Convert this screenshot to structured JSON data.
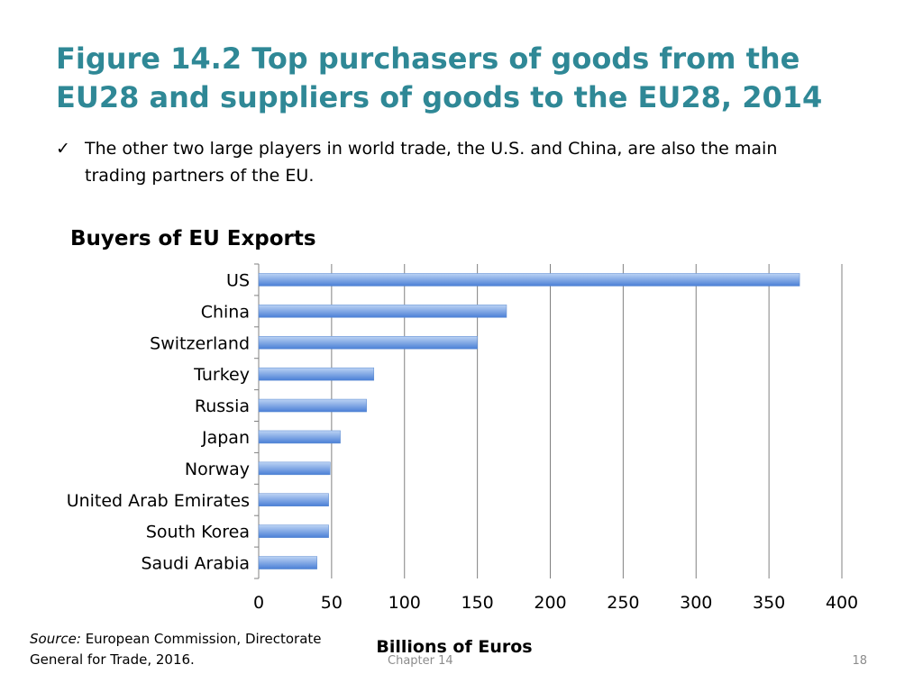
{
  "slide": {
    "title": "Figure 14.2 Top purchasers of goods from the EU28 and suppliers of goods to the EU28, 2014",
    "bullet": "The other two large players in world trade, the U.S. and China, are also the main trading partners of the EU.",
    "source_label": "Source:",
    "source_text": "European Commission, Directorate General for Trade, 2016.",
    "footer_chapter": "Chapter 14",
    "page_number": "18"
  },
  "chart_data": {
    "type": "bar",
    "orientation": "horizontal",
    "title": "Buyers of EU Exports",
    "xlabel": "Billions of Euros",
    "ylabel": "",
    "categories": [
      "US",
      "China",
      "Switzerland",
      "Turkey",
      "Russia",
      "Japan",
      "Norway",
      "United Arab Emirates",
      "South Korea",
      "Saudi Arabia"
    ],
    "values": [
      371,
      170,
      150,
      79,
      74,
      56,
      49,
      48,
      48,
      40
    ],
    "xlim": [
      0,
      400
    ],
    "ticks": [
      0,
      50,
      100,
      150,
      200,
      250,
      300,
      350,
      400
    ],
    "grid": true,
    "legend": "none",
    "colors": {
      "bar_light": "#bcd3f4",
      "bar_dark": "#4a7fd6",
      "grid": "#808080"
    }
  }
}
